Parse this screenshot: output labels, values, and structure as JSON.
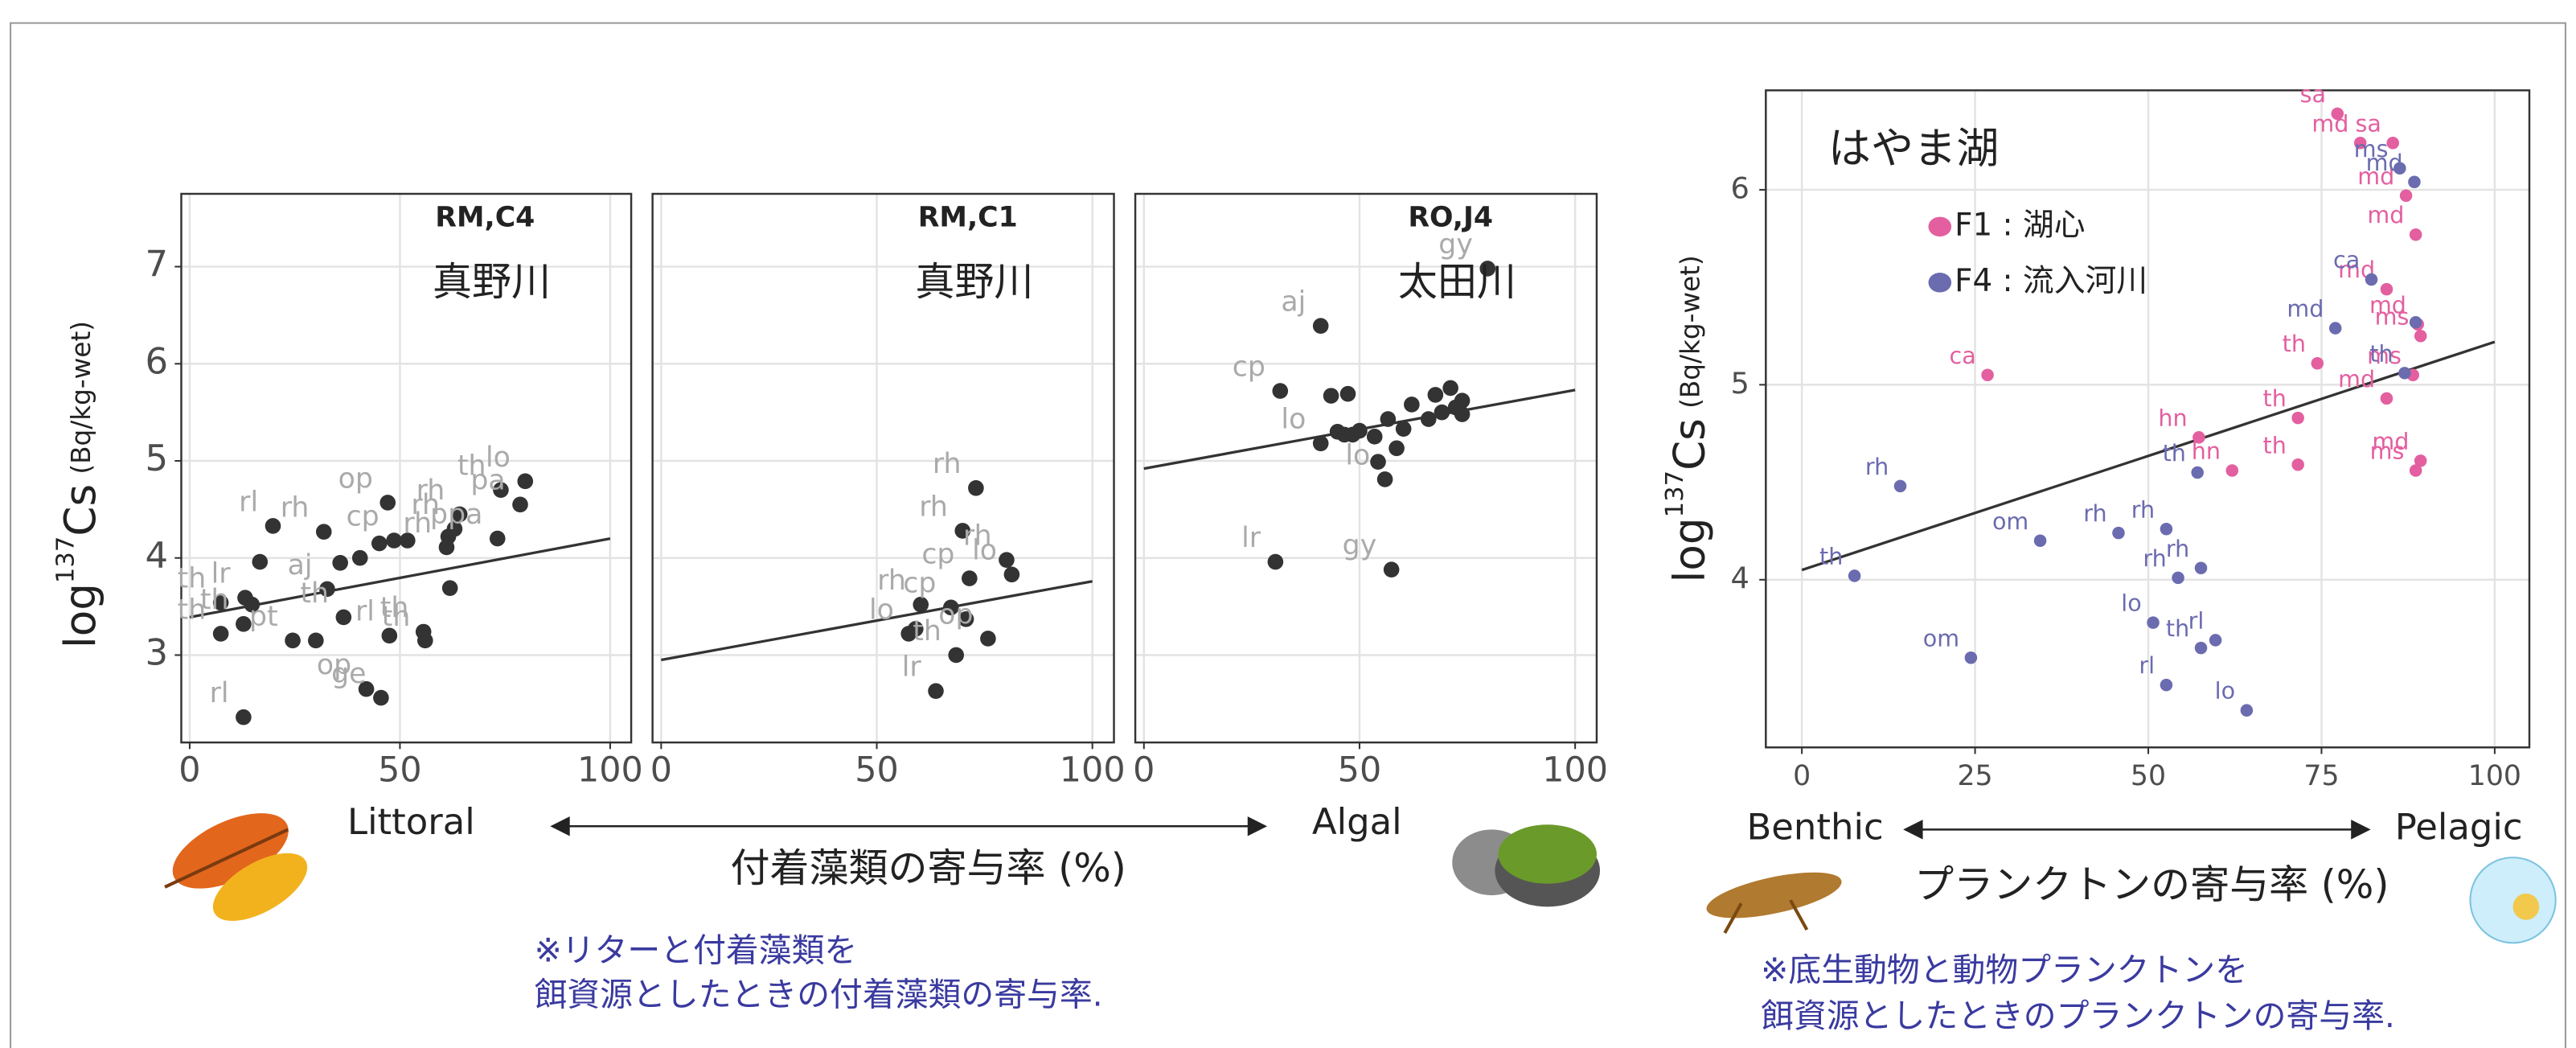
{
  "chart_data": [
    {
      "type": "scatter",
      "site": "RM,C4",
      "river": "真野川",
      "ylabel_parts": [
        "log",
        "137",
        "Cs",
        "(Bq/kg-wet)"
      ],
      "xlim": [
        -2,
        105
      ],
      "ylim": [
        2.1,
        7.75
      ],
      "xticks": [
        0,
        50,
        100
      ],
      "yticks": [
        3,
        4,
        5,
        6,
        7
      ],
      "grid": true,
      "ytick_labels": true,
      "trend": {
        "x": [
          0,
          100
        ],
        "y": [
          3.39,
          4.2
        ],
        "color": "#333333"
      },
      "series": [
        {
          "color": "#333333",
          "label_color": "#aaaaaa",
          "x": [
            12.8,
            7.4,
            7.4,
            13.2,
            14.8,
            12.8,
            16.7,
            19.8,
            24.5,
            30,
            31.9,
            32.7,
            35.8,
            36.6,
            40.5,
            42,
            45.5,
            45.1,
            47.1,
            47.5,
            48.6,
            51.8,
            55.6,
            56,
            61.1,
            61.5,
            61.9,
            63,
            64.2,
            73.2,
            74,
            78.6,
            79.8
          ],
          "values": [
            2.36,
            3.54,
            3.22,
            3.59,
            3.52,
            3.32,
            3.96,
            4.33,
            3.15,
            3.15,
            4.27,
            3.68,
            3.95,
            3.39,
            4.0,
            2.65,
            2.56,
            4.15,
            4.57,
            3.2,
            4.18,
            4.18,
            3.24,
            3.15,
            4.11,
            4.22,
            3.69,
            4.3,
            4.45,
            4.2,
            4.7,
            4.55,
            4.79
          ],
          "point_labels": [
            "rl",
            "th",
            "th",
            "lr",
            null,
            "th",
            null,
            "rl",
            "pt",
            null,
            "rh",
            "aj",
            null,
            "th",
            null,
            "op",
            "ge",
            null,
            "op",
            "rl",
            "cp",
            null,
            "th",
            "th",
            "rh",
            null,
            null,
            "rh",
            "rh",
            "ppa",
            "th",
            "pa",
            "lo"
          ]
        }
      ]
    },
    {
      "type": "scatter",
      "site": "RM,C1",
      "river": "真野川",
      "xlim": [
        -2,
        105
      ],
      "ylim": [
        2.1,
        7.75
      ],
      "xticks": [
        0,
        50,
        100
      ],
      "yticks": [
        3,
        4,
        5,
        6,
        7
      ],
      "grid": true,
      "ytick_labels": false,
      "trend": {
        "x": [
          0,
          100
        ],
        "y": [
          2.95,
          3.76
        ],
        "color": "#333333"
      },
      "series": [
        {
          "color": "#333333",
          "label_color": "#aaaaaa",
          "x": [
            57.4,
            59,
            60.2,
            63.7,
            67.2,
            68.4,
            69.9,
            70.7,
            71.5,
            73,
            75.8,
            80.1,
            81.3
          ],
          "values": [
            3.22,
            3.27,
            3.52,
            2.63,
            3.49,
            3.0,
            4.28,
            3.37,
            3.79,
            4.72,
            3.17,
            3.98,
            3.83
          ],
          "point_labels": [
            "lo",
            null,
            "rh",
            "lr",
            "cp",
            "th",
            "rh",
            null,
            "cp",
            "rh",
            "op",
            "rh",
            "lo"
          ]
        }
      ]
    },
    {
      "type": "scatter",
      "site": "RO,J4",
      "river": "太田川",
      "xlim": [
        -2,
        105
      ],
      "ylim": [
        2.1,
        7.75
      ],
      "xticks": [
        0,
        50,
        100
      ],
      "yticks": [
        3,
        4,
        5,
        6,
        7
      ],
      "grid": true,
      "ytick_labels": false,
      "trend": {
        "x": [
          0,
          100
        ],
        "y": [
          4.92,
          5.73
        ],
        "color": "#333333"
      },
      "series": [
        {
          "color": "#333333",
          "label_color": "#aaaaaa",
          "x": [
            30.5,
            31.6,
            41,
            41,
            43.4,
            44.9,
            46.5,
            47.3,
            48.4,
            50,
            53.5,
            54.3,
            55.9,
            56.6,
            57.4,
            58.6,
            60.2,
            62.1,
            66,
            67.6,
            69.1,
            71.1,
            72.3,
            73.8,
            73.8,
            79.7
          ],
          "values": [
            3.96,
            5.72,
            6.39,
            5.18,
            5.67,
            5.3,
            5.27,
            5.69,
            5.27,
            5.31,
            5.25,
            4.99,
            4.81,
            5.43,
            3.88,
            5.13,
            5.33,
            5.58,
            5.43,
            5.68,
            5.5,
            5.75,
            5.55,
            5.48,
            5.62,
            6.98
          ],
          "point_labels": [
            "lr",
            "cp",
            "aj",
            "lo",
            null,
            null,
            null,
            null,
            null,
            null,
            null,
            null,
            "lo",
            null,
            "gy",
            null,
            null,
            null,
            null,
            null,
            null,
            null,
            null,
            null,
            null,
            "gy"
          ]
        }
      ]
    },
    {
      "type": "scatter",
      "title": "はやま湖",
      "ylabel_parts": [
        "log",
        "137",
        "Cs",
        "(Bq/kg-wet)"
      ],
      "xlim": [
        -5.2,
        105
      ],
      "ylim": [
        3.14,
        6.51
      ],
      "xticks": [
        0,
        25,
        50,
        75,
        100
      ],
      "yticks": [
        4,
        5,
        6
      ],
      "grid": true,
      "ytick_labels": true,
      "legend": "top-left",
      "trend": {
        "x": [
          0,
          100
        ],
        "y": [
          4.05,
          5.22
        ],
        "color": "#333333"
      },
      "series": [
        {
          "name": "F1 : 湖心",
          "color": "#e35fa0",
          "x": [
            26.8,
            57.3,
            62.1,
            71.6,
            71.6,
            74.4,
            77.3,
            80.6,
            85.3,
            87.2,
            88.6,
            84.4,
            88.9,
            89.3,
            88.2,
            84.4,
            89.3,
            88.6
          ],
          "values": [
            5.05,
            4.73,
            4.56,
            4.59,
            4.83,
            5.11,
            6.39,
            6.24,
            6.24,
            5.97,
            5.77,
            5.49,
            5.31,
            5.25,
            5.05,
            4.93,
            4.61,
            4.56
          ],
          "point_labels": [
            "ca",
            "hn",
            "hn",
            "th",
            "th",
            "th",
            "sa",
            "md",
            "sa",
            "md",
            "md",
            "md",
            "md",
            "ms",
            "ms",
            "md",
            "md",
            "ms"
          ]
        },
        {
          "name": "F4 : 流入河川",
          "color": "#6b6bb0",
          "x": [
            14.2,
            7.6,
            24.4,
            34.4,
            45.7,
            52.6,
            57.1,
            57.6,
            54.3,
            50.7,
            57.6,
            59.7,
            52.6,
            64.2,
            77,
            82.2,
            86.3,
            88.4,
            88.6,
            87
          ],
          "values": [
            4.48,
            4.02,
            3.6,
            4.2,
            4.24,
            4.26,
            4.55,
            4.06,
            4.01,
            3.78,
            3.65,
            3.69,
            3.46,
            3.33,
            5.29,
            5.54,
            6.11,
            6.04,
            5.32,
            5.06
          ],
          "point_labels": [
            "rh",
            "th",
            "om",
            "om",
            "rh",
            "rh",
            "th",
            "rh",
            "rh",
            "lo",
            "th",
            "rl",
            "rl",
            "lo",
            "md",
            "ca",
            "ms",
            "md",
            null,
            "th"
          ]
        }
      ]
    }
  ],
  "annotations": {
    "littoral": "Littoral",
    "algal": "Algal",
    "left_xlabel": "付着藻類の寄与率 (%)",
    "left_note": [
      "※リターと付着藻類を",
      "餌資源としたときの付着藻類の寄与率."
    ],
    "benthic": "Benthic",
    "pelagic": "Pelagic",
    "right_xlabel": "プランクトンの寄与率 (%)",
    "right_note": [
      "※底生動物と動物プランクトンを",
      "餌資源としたときのプランクトンの寄与率."
    ]
  }
}
